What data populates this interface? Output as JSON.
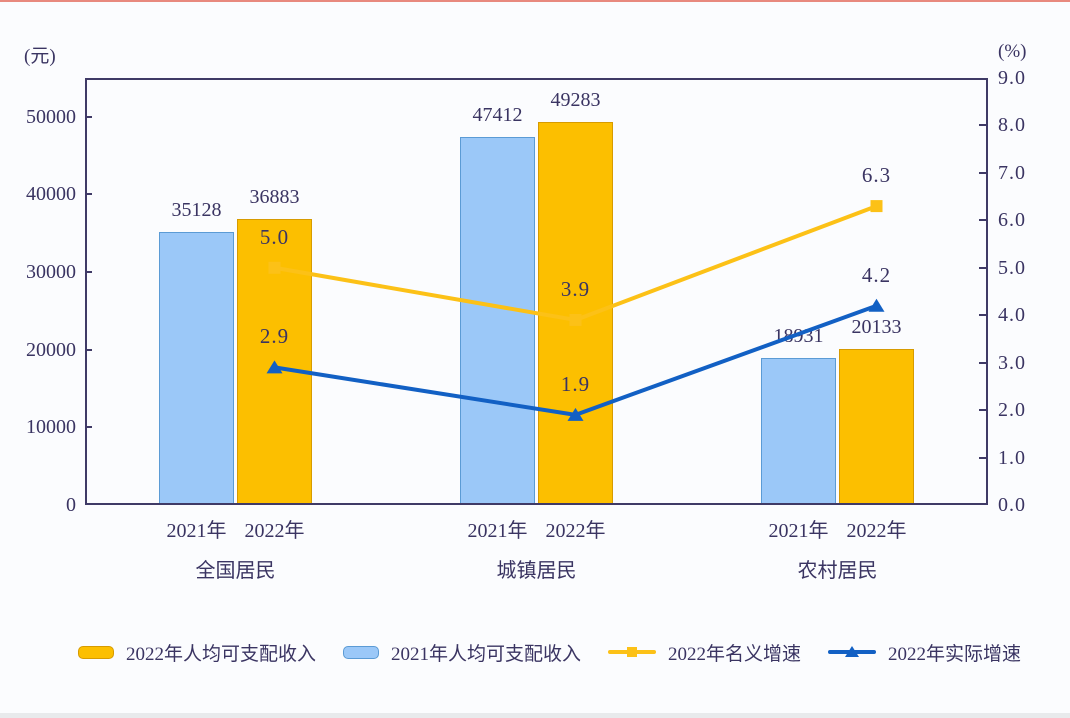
{
  "page": {
    "top_line_color": "#e8897e",
    "bottom_strip_color": "#e8eaec",
    "background": "#fbfcfe",
    "text_color": "#3a3462",
    "axis_color": "#3f3a66"
  },
  "chart_data": {
    "type": "bar+line",
    "title": "",
    "left_axis": {
      "unit": "(元)",
      "min": 0,
      "max": 55000,
      "ticks": [
        0,
        10000,
        20000,
        30000,
        40000,
        50000
      ],
      "tick_labels": [
        "0",
        "10000",
        "20000",
        "30000",
        "40000",
        "50000"
      ]
    },
    "right_axis": {
      "unit": "(%)",
      "min": 0,
      "max": 9,
      "ticks": [
        0,
        1,
        2,
        3,
        4,
        5,
        6,
        7,
        8,
        9
      ],
      "tick_labels": [
        "0.0",
        "1.0",
        "2.0",
        "3.0",
        "4.0",
        "5.0",
        "6.0",
        "7.0",
        "8.0",
        "9.0"
      ]
    },
    "groups": [
      "全国居民",
      "城镇居民",
      "农村居民"
    ],
    "bar_year_labels": [
      "2021年",
      "2022年"
    ],
    "bar_series": [
      {
        "name": "2021年人均可支配收入",
        "color": "#9bc8f8",
        "border": "#5b9bd5",
        "values": [
          35128,
          47412,
          18931
        ]
      },
      {
        "name": "2022年人均可支配收入",
        "color": "#fcbf00",
        "border": "#d79b00",
        "values": [
          36883,
          49283,
          20133
        ]
      }
    ],
    "line_series": [
      {
        "name": "2022年名义增速",
        "color": "#fcc117",
        "marker": "square",
        "values": [
          5.0,
          3.9,
          6.3
        ]
      },
      {
        "name": "2022年实际增速",
        "color": "#1260c4",
        "marker": "triangle",
        "values": [
          2.9,
          1.9,
          4.2
        ]
      }
    ],
    "legend": [
      {
        "type": "bar",
        "color": "#fcbf00",
        "border": "#d79b00",
        "label": "2022年人均可支配收入"
      },
      {
        "type": "bar",
        "color": "#9bc8f8",
        "border": "#5b9bd5",
        "label": "2021年人均可支配收入"
      },
      {
        "type": "line",
        "color": "#fcc117",
        "marker": "square",
        "label": "2022年名义增速"
      },
      {
        "type": "line",
        "color": "#1260c4",
        "marker": "triangle",
        "label": "2022年实际增速"
      }
    ],
    "layout": {
      "grid": false,
      "legend_position": "bottom",
      "bar_labels_shown": true,
      "line_labels_shown": true
    }
  }
}
